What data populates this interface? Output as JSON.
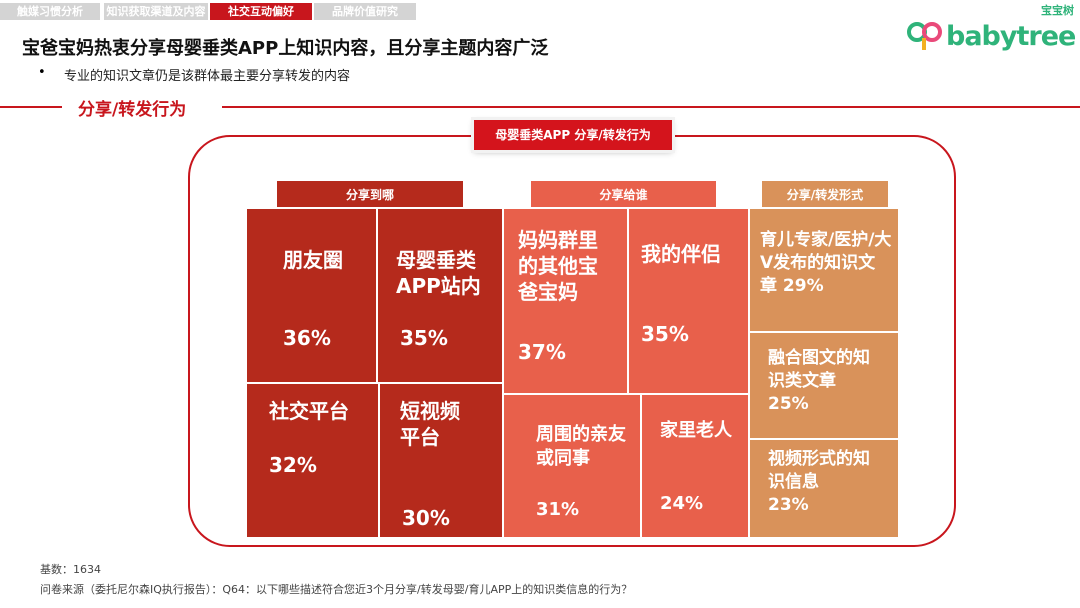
{
  "tabs": [
    {
      "label": "触媒习惯分析"
    },
    {
      "label": "知识获取渠道及内容"
    },
    {
      "label": "社交互动偏好",
      "active": true
    },
    {
      "label": "品牌价值研究"
    }
  ],
  "logo": {
    "text": "babytree",
    "cn": "宝宝树"
  },
  "title": "宝爸宝妈热衷分享母婴垂类APP上知识内容，且分享主题内容广泛",
  "bullet": "专业的知识文章仍是该群体最主要分享转发的内容",
  "bullet_mark": "•",
  "section": "分享/转发行为",
  "diagram": {
    "label": "母婴垂类APP 分享/转发行为",
    "colors": {
      "where": "#b52a1c",
      "whom": "#e8604b",
      "form": "#d9925a",
      "accent": "#c8161d"
    },
    "groups": [
      {
        "header": "分享到哪",
        "items": [
          {
            "name": "朋友圈",
            "value": "36%"
          },
          {
            "name": "母婴垂类APP站内",
            "value": "35%"
          },
          {
            "name": "社交平台",
            "value": "32%"
          },
          {
            "name": "短视频平台",
            "value": "30%"
          }
        ]
      },
      {
        "header": "分享给谁",
        "items": [
          {
            "name": "妈妈群里的其他宝爸宝妈",
            "value": "37%"
          },
          {
            "name": "我的伴侣",
            "value": "35%"
          },
          {
            "name": "周围的亲友或同事",
            "value": "31%"
          },
          {
            "name": "家里老人",
            "value": "24%"
          }
        ]
      },
      {
        "header": "分享/转发形式",
        "items": [
          {
            "name": "育儿专家/医护/大V发布的知识文章",
            "value": "29%"
          },
          {
            "name": "融合图文的知识类文章",
            "value": "25%"
          },
          {
            "name": "视频形式的知识信息",
            "value": "23%"
          }
        ]
      }
    ]
  },
  "footer": {
    "base": "基数：1634",
    "source": "问卷来源（委托尼尔森IQ执行报告）：Q64：以下哪些描述符合您近3个月分享/转发母婴/育儿APP上的知识类信息的行为？"
  }
}
